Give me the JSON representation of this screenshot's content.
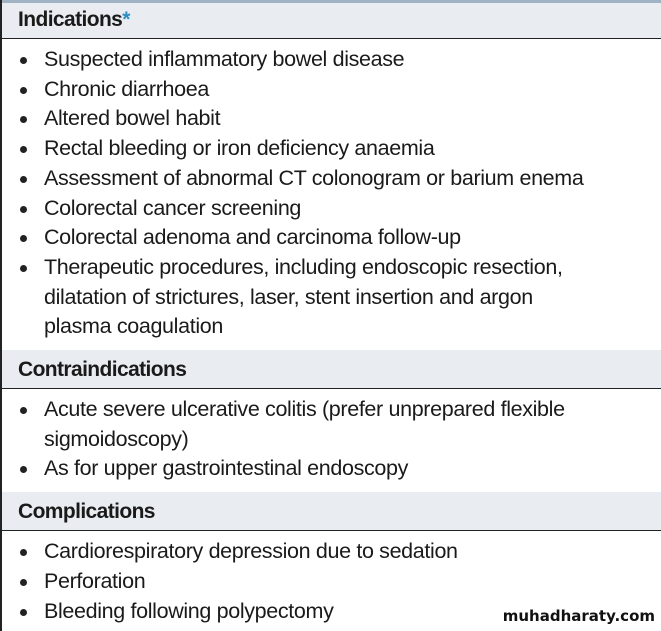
{
  "sections": [
    {
      "title": "Indications",
      "marker": "*",
      "items": [
        "Suspected inflammatory bowel disease",
        "Chronic diarrhoea",
        "Altered bowel habit",
        "Rectal bleeding or iron deficiency anaemia",
        "Assessment of abnormal CT colonogram or barium enema",
        "Colorectal cancer screening",
        "Colorectal adenoma and carcinoma follow-up",
        "Therapeutic procedures, including endoscopic resection, dilatation of strictures, laser, stent insertion and argon plasma coagulation"
      ]
    },
    {
      "title": "Contraindications",
      "items": [
        "Acute severe ulcerative colitis (prefer unprepared flexible sigmoidoscopy)",
        "As for upper gastrointestinal endoscopy"
      ]
    },
    {
      "title": "Complications",
      "items": [
        "Cardiorespiratory depression due to sedation",
        "Perforation",
        "Bleeding following polypectomy"
      ]
    }
  ],
  "watermark": "muhadharaty.com",
  "colors": {
    "header_bg": "#e9edf1",
    "asterisk": "#2a8fc0"
  }
}
